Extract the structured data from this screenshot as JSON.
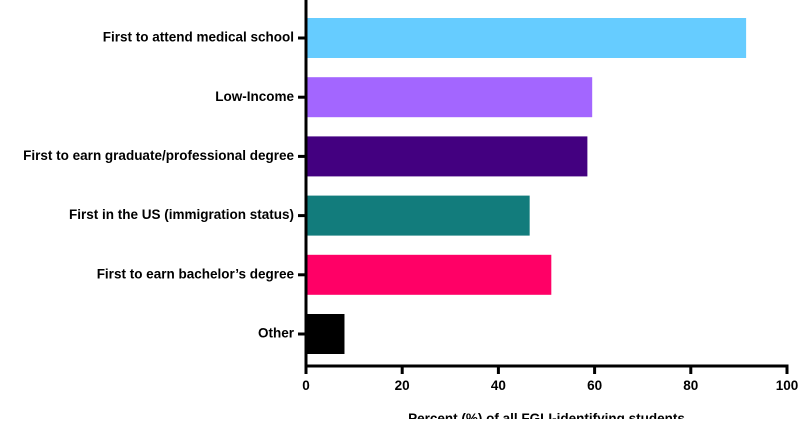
{
  "chart_data": {
    "type": "bar",
    "orientation": "horizontal",
    "categories": [
      "First to attend medical school",
      "Low-Income",
      "First to earn graduate/professional degree",
      "First in the US (immigration status)",
      "First to earn bachelor’s degree",
      "Other"
    ],
    "values": [
      91.5,
      59.5,
      58.5,
      46.5,
      51.0,
      8.0
    ],
    "colors": [
      "#66ccff",
      "#a366ff",
      "#430080",
      "#127c7c",
      "#ff0066",
      "#000000"
    ],
    "xlabel": "Percent (%) of all FGLI-identifying students",
    "ylabel": "",
    "xlim": [
      0,
      100
    ],
    "xticks": [
      "0",
      "20",
      "40",
      "60",
      "80",
      "100"
    ],
    "grid": false,
    "legend": "none"
  }
}
